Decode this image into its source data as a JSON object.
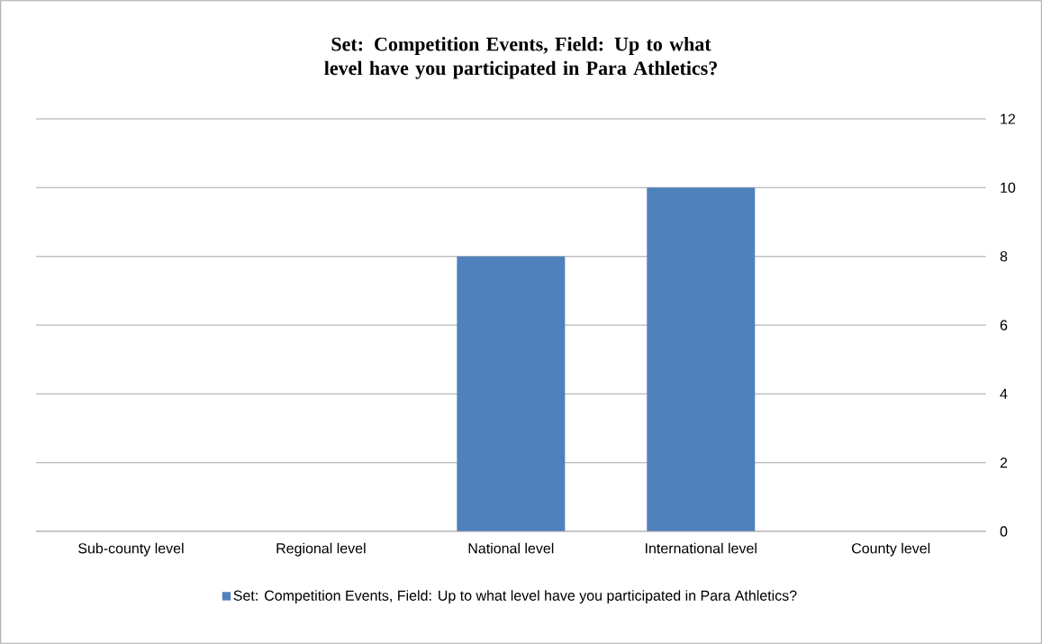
{
  "chart_data": {
    "type": "bar",
    "title": "Set: Competition Events, Field: Up to what level have you participated in Para Athletics?",
    "categories": [
      "Sub-county level",
      "Regional level",
      "National level",
      "International level",
      "County level"
    ],
    "series": [
      {
        "name": "Set: Competition Events, Field: Up to what level have you participated in Para Athletics?",
        "color": "#4f81bd",
        "values": [
          0,
          0,
          8,
          10,
          0
        ]
      }
    ],
    "ylim": [
      0,
      12
    ],
    "yticks": [
      0,
      2,
      4,
      6,
      8,
      10,
      12
    ],
    "grid": "y",
    "legend": "bottom"
  }
}
